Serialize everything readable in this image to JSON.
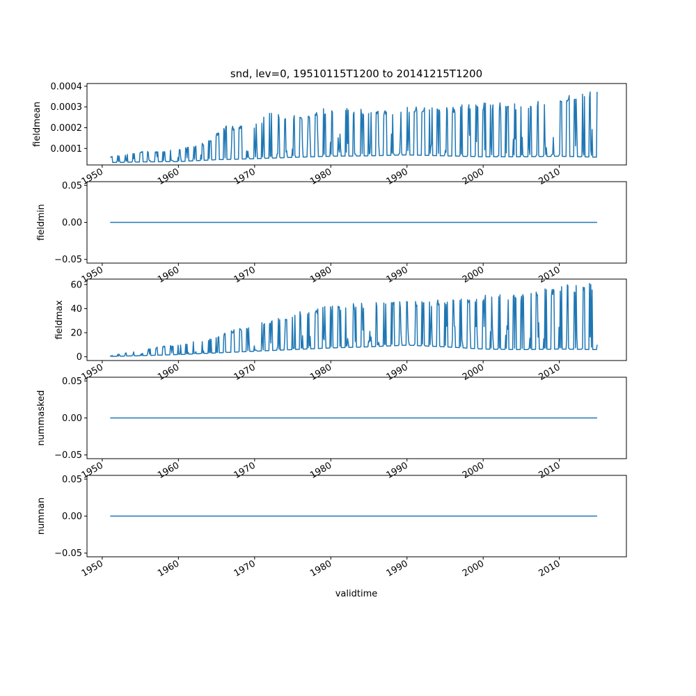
{
  "figure": {
    "title": "snd, lev=0, 19510115T1200 to 20141215T1200",
    "xlabel": "validtime"
  },
  "colors": {
    "series": "#1f77b4",
    "axes": "#000000",
    "background": "#ffffff"
  },
  "chart_data": [
    {
      "type": "line",
      "ylabel": "fieldmean",
      "xlim": [
        1948.0,
        2018.8
      ],
      "ylim": [
        2.05e-05,
        0.000413
      ],
      "yticks": [
        0.0001,
        0.0002,
        0.0003,
        0.0004
      ],
      "ytick_labels": [
        "0.0001",
        "0.0002",
        "0.0003",
        "0.0004"
      ],
      "xticks": [
        1950,
        1960,
        1970,
        1980,
        1990,
        2000,
        2010
      ],
      "xtick_labels": [
        "1950",
        "1960",
        "1970",
        "1980",
        "1990",
        "2000",
        "2010"
      ],
      "grid": false,
      "series": [
        {
          "x_start": "1951-01",
          "x_end": "2014-12",
          "baseline_points": [
            [
              1951.0,
              3.5e-05
            ],
            [
              1955.0,
              3.8e-05
            ],
            [
              1960.0,
              4e-05
            ],
            [
              1965.0,
              5e-05
            ],
            [
              1970.0,
              5.5e-05
            ],
            [
              1975.0,
              6.2e-05
            ],
            [
              1980.0,
              6.8e-05
            ],
            [
              1985.0,
              7e-05
            ],
            [
              1990.0,
              7.5e-05
            ],
            [
              2000.0,
              6.5e-05
            ],
            [
              2005.0,
              6.5e-05
            ],
            [
              2010.0,
              6.8e-05
            ],
            [
              2015.0,
              6.3e-05
            ]
          ],
          "peak_points": [
            [
              1951.0,
              6e-05
            ],
            [
              1955.0,
              8.5e-05
            ],
            [
              1958.0,
              8.8e-05
            ],
            [
              1962.0,
              0.00011
            ],
            [
              1964.0,
              0.00014
            ],
            [
              1966.0,
              0.00021
            ],
            [
              1968.0,
              0.00021
            ],
            [
              1970.0,
              0.00021
            ],
            [
              1972.0,
              0.00029
            ],
            [
              1975.0,
              0.00026
            ],
            [
              1978.0,
              0.00028
            ],
            [
              1980.0,
              0.000305
            ],
            [
              1985.0,
              0.00029
            ],
            [
              1990.0,
              0.0003
            ],
            [
              1995.0,
              0.000305
            ],
            [
              2000.0,
              0.00032
            ],
            [
              2005.0,
              0.00032
            ],
            [
              2010.0,
              0.00035
            ],
            [
              2012.0,
              0.00038
            ],
            [
              2014.0,
              0.00039
            ]
          ]
        }
      ]
    },
    {
      "type": "line",
      "ylabel": "fieldmin",
      "xlim": [
        1948.0,
        2018.8
      ],
      "ylim": [
        -0.055,
        0.055
      ],
      "yticks": [
        -0.05,
        0.0,
        0.05
      ],
      "ytick_labels": [
        "−0.05",
        "0.00",
        "0.05"
      ],
      "xticks": [
        1950,
        1960,
        1970,
        1980,
        1990,
        2000,
        2010
      ],
      "xtick_labels": [
        "1950",
        "1960",
        "1970",
        "1980",
        "1990",
        "2000",
        "2010"
      ],
      "grid": false,
      "series": [
        {
          "x_start": "1951-01",
          "x_end": "2014-12",
          "constant_value": 0.0
        }
      ]
    },
    {
      "type": "line",
      "ylabel": "fieldmax",
      "xlim": [
        1948.0,
        2018.8
      ],
      "ylim": [
        -3.1,
        64.5
      ],
      "yticks": [
        0,
        20,
        40,
        60
      ],
      "ytick_labels": [
        "0",
        "20",
        "40",
        "60"
      ],
      "xticks": [
        1950,
        1960,
        1970,
        1980,
        1990,
        2000,
        2010
      ],
      "xtick_labels": [
        "1950",
        "1960",
        "1970",
        "1980",
        "1990",
        "2000",
        "2010"
      ],
      "grid": false,
      "series": [
        {
          "x_start": "1951-01",
          "x_end": "2014-12",
          "baseline_points": [
            [
              1951.0,
              0.3
            ],
            [
              1955.0,
              1.0
            ],
            [
              1960.0,
              2.0
            ],
            [
              1965.0,
              3.5
            ],
            [
              1970.0,
              5.0
            ],
            [
              1975.0,
              6.5
            ],
            [
              1980.0,
              8.0
            ],
            [
              1985.0,
              9.0
            ],
            [
              1990.0,
              10.5
            ],
            [
              1995.0,
              9.0
            ],
            [
              2000.0,
              7.0
            ],
            [
              2005.0,
              6.5
            ],
            [
              2010.0,
              7.0
            ],
            [
              2015.0,
              6.5
            ]
          ],
          "peak_points": [
            [
              1951.0,
              1.0
            ],
            [
              1955.0,
              5.5
            ],
            [
              1958.0,
              9.0
            ],
            [
              1960.0,
              10.0
            ],
            [
              1964.0,
              15.0
            ],
            [
              1967.0,
              22.0
            ],
            [
              1970.0,
              27.0
            ],
            [
              1973.0,
              32.0
            ],
            [
              1976.0,
              38.0
            ],
            [
              1980.0,
              43.0
            ],
            [
              1985.0,
              45.0
            ],
            [
              1990.0,
              46.0
            ],
            [
              1995.0,
              48.0
            ],
            [
              2000.0,
              51.0
            ],
            [
              2005.0,
              53.0
            ],
            [
              2010.0,
              59.0
            ],
            [
              2012.0,
              61.0
            ],
            [
              2014.0,
              62.0
            ]
          ]
        }
      ]
    },
    {
      "type": "line",
      "ylabel": "nummasked",
      "xlim": [
        1948.0,
        2018.8
      ],
      "ylim": [
        -0.055,
        0.055
      ],
      "yticks": [
        -0.05,
        0.0,
        0.05
      ],
      "ytick_labels": [
        "−0.05",
        "0.00",
        "0.05"
      ],
      "xticks": [
        1950,
        1960,
        1970,
        1980,
        1990,
        2000,
        2010
      ],
      "xtick_labels": [
        "1950",
        "1960",
        "1970",
        "1980",
        "1990",
        "2000",
        "2010"
      ],
      "grid": false,
      "series": [
        {
          "x_start": "1951-01",
          "x_end": "2014-12",
          "constant_value": 0.0
        }
      ]
    },
    {
      "type": "line",
      "ylabel": "numnan",
      "xlim": [
        1948.0,
        2018.8
      ],
      "ylim": [
        -0.055,
        0.055
      ],
      "yticks": [
        -0.05,
        0.0,
        0.05
      ],
      "ytick_labels": [
        "−0.05",
        "0.00",
        "0.05"
      ],
      "xticks": [
        1950,
        1960,
        1970,
        1980,
        1990,
        2000,
        2010
      ],
      "xtick_labels": [
        "1950",
        "1960",
        "1970",
        "1980",
        "1990",
        "2000",
        "2010"
      ],
      "grid": false,
      "series": [
        {
          "x_start": "1951-01",
          "x_end": "2014-12",
          "constant_value": 0.0
        }
      ]
    }
  ]
}
